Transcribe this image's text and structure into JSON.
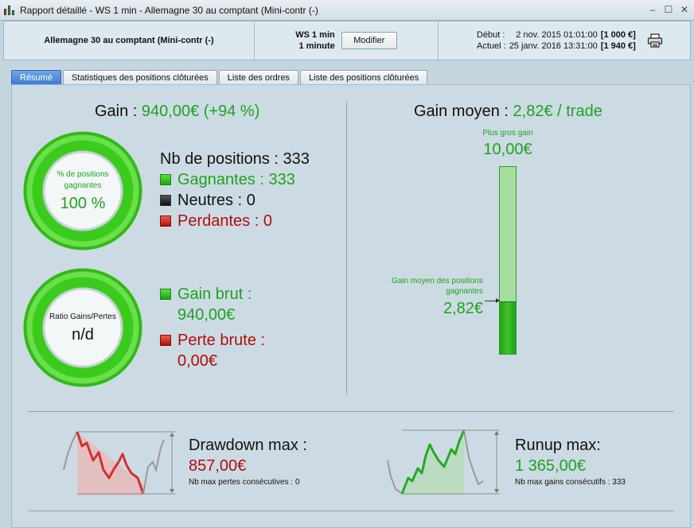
{
  "window": {
    "title": "Rapport détaillé - WS 1 min - Allemagne 30 au comptant (Mini-contr (-)",
    "controls": [
      "minimize",
      "maximize",
      "close"
    ]
  },
  "header": {
    "instrument": "Allemagne 30 au comptant (Mini-contr (-)",
    "timeframe_line1": "WS 1 min",
    "timeframe_line2": "1 minute",
    "modify_label": "Modifier",
    "start_label": "Début :",
    "start_date": "2 nov. 2015 01:01:00",
    "start_amount": "[1 000 €]",
    "current_label": "Actuel :",
    "current_date": "25 janv. 2016 13:31:00",
    "current_amount": "[1 940 €]"
  },
  "tabs": [
    {
      "label": "Résumé",
      "active": true
    },
    {
      "label": "Statistiques des positions clôturées"
    },
    {
      "label": "Liste des ordres"
    },
    {
      "label": "Liste des positions clôturées"
    }
  ],
  "summary": {
    "gain_label": "Gain : ",
    "gain_value": "940,00€ (+94 %)",
    "win_ratio_label": "% de positions gagnantes",
    "win_ratio_value": "100 %",
    "win_ratio_fraction": 1.0,
    "positions_label": "Nb de positions : 333",
    "winners_label": "Gagnantes : 333",
    "neutral_label": "Neutres : 0",
    "losers_label": "Perdantes : 0",
    "ratio_label": "Ratio Gains/Pertes",
    "ratio_value": "n/d",
    "gross_gain_label": "Gain brut :",
    "gross_gain_value": "940,00€",
    "gross_loss_label": "Perte brute :",
    "gross_loss_value": "0,00€"
  },
  "average": {
    "title_label": "Gain moyen : ",
    "title_value": "2,82€ / trade",
    "max_label": "Plus gros gain",
    "max_value": "10,00€",
    "avg_label": "Gain moyen des positions gagnantes",
    "avg_value": "2,82€",
    "max_amount": 10.0,
    "avg_amount": 2.82
  },
  "drawdown": {
    "title": "Drawdown max :",
    "value": "857,00€",
    "sub": "Nb max pertes consécutives : 0"
  },
  "runup": {
    "title": "Runup max:",
    "value": "1 365,00€",
    "sub": "Nb max gains consécutifs : 333"
  },
  "colors": {
    "green": "#1ea31e",
    "red": "#b00d0d",
    "tab_active": "#3b79cf"
  }
}
